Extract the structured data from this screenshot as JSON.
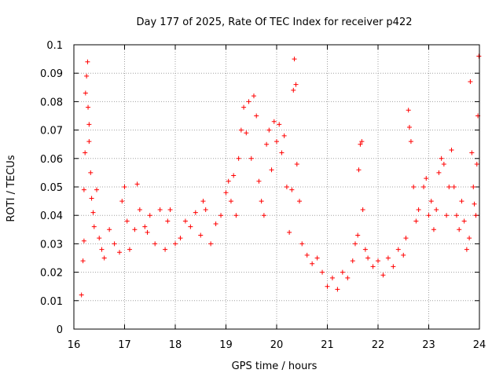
{
  "chart_data": {
    "type": "scatter",
    "title": "Day 177 of 2025, Rate Of TEC Index for receiver p422",
    "xlabel": "GPS time / hours",
    "ylabel": "ROTI / TECUs",
    "xlim": [
      16,
      24
    ],
    "ylim": [
      0,
      0.1
    ],
    "x_ticks": [
      16,
      17,
      18,
      19,
      20,
      21,
      22,
      23,
      24
    ],
    "x_tick_labels": [
      "16",
      "17",
      "18",
      "19",
      "20",
      "21",
      "22",
      "23",
      "24"
    ],
    "y_ticks": [
      0,
      0.01,
      0.02,
      0.03,
      0.04,
      0.05,
      0.06,
      0.07,
      0.08,
      0.09,
      0.1
    ],
    "y_tick_labels": [
      "0",
      "0.01",
      "0.02",
      "0.03",
      "0.04",
      "0.05",
      "0.06",
      "0.07",
      "0.08",
      "0.09",
      "0.1"
    ],
    "grid": true,
    "marker": "plus",
    "color": "#ff0000",
    "series": [
      {
        "points": [
          [
            16.15,
            0.012
          ],
          [
            16.18,
            0.024
          ],
          [
            16.2,
            0.031
          ],
          [
            16.2,
            0.049
          ],
          [
            16.22,
            0.062
          ],
          [
            16.23,
            0.083
          ],
          [
            16.25,
            0.089
          ],
          [
            16.27,
            0.094
          ],
          [
            16.28,
            0.078
          ],
          [
            16.3,
            0.072
          ],
          [
            16.3,
            0.066
          ],
          [
            16.33,
            0.055
          ],
          [
            16.35,
            0.046
          ],
          [
            16.38,
            0.041
          ],
          [
            16.4,
            0.036
          ],
          [
            16.45,
            0.049
          ],
          [
            16.5,
            0.032
          ],
          [
            16.55,
            0.028
          ],
          [
            16.6,
            0.025
          ],
          [
            16.7,
            0.035
          ],
          [
            16.8,
            0.03
          ],
          [
            16.9,
            0.027
          ],
          [
            16.95,
            0.045
          ],
          [
            17.0,
            0.05
          ],
          [
            17.05,
            0.038
          ],
          [
            17.1,
            0.028
          ],
          [
            17.2,
            0.035
          ],
          [
            17.25,
            0.051
          ],
          [
            17.3,
            0.042
          ],
          [
            17.4,
            0.036
          ],
          [
            17.45,
            0.034
          ],
          [
            17.5,
            0.04
          ],
          [
            17.6,
            0.03
          ],
          [
            17.7,
            0.042
          ],
          [
            17.8,
            0.028
          ],
          [
            17.85,
            0.038
          ],
          [
            17.9,
            0.042
          ],
          [
            18.0,
            0.03
          ],
          [
            18.1,
            0.032
          ],
          [
            18.2,
            0.038
          ],
          [
            18.3,
            0.036
          ],
          [
            18.4,
            0.041
          ],
          [
            18.5,
            0.033
          ],
          [
            18.55,
            0.045
          ],
          [
            18.6,
            0.042
          ],
          [
            18.7,
            0.03
          ],
          [
            18.8,
            0.037
          ],
          [
            18.9,
            0.04
          ],
          [
            19.0,
            0.048
          ],
          [
            19.05,
            0.052
          ],
          [
            19.1,
            0.045
          ],
          [
            19.15,
            0.054
          ],
          [
            19.2,
            0.04
          ],
          [
            19.25,
            0.06
          ],
          [
            19.3,
            0.07
          ],
          [
            19.35,
            0.078
          ],
          [
            19.4,
            0.069
          ],
          [
            19.45,
            0.08
          ],
          [
            19.5,
            0.06
          ],
          [
            19.55,
            0.082
          ],
          [
            19.6,
            0.075
          ],
          [
            19.65,
            0.052
          ],
          [
            19.7,
            0.045
          ],
          [
            19.75,
            0.04
          ],
          [
            19.8,
            0.065
          ],
          [
            19.85,
            0.07
          ],
          [
            19.9,
            0.056
          ],
          [
            19.95,
            0.073
          ],
          [
            20.0,
            0.066
          ],
          [
            20.05,
            0.072
          ],
          [
            20.1,
            0.062
          ],
          [
            20.15,
            0.068
          ],
          [
            20.2,
            0.05
          ],
          [
            20.25,
            0.034
          ],
          [
            20.3,
            0.049
          ],
          [
            20.33,
            0.084
          ],
          [
            20.35,
            0.095
          ],
          [
            20.38,
            0.086
          ],
          [
            20.4,
            0.058
          ],
          [
            20.45,
            0.045
          ],
          [
            20.5,
            0.03
          ],
          [
            20.6,
            0.026
          ],
          [
            20.7,
            0.023
          ],
          [
            20.8,
            0.025
          ],
          [
            20.9,
            0.02
          ],
          [
            21.0,
            0.015
          ],
          [
            21.1,
            0.018
          ],
          [
            21.2,
            0.014
          ],
          [
            21.3,
            0.02
          ],
          [
            21.4,
            0.018
          ],
          [
            21.5,
            0.024
          ],
          [
            21.55,
            0.03
          ],
          [
            21.6,
            0.033
          ],
          [
            21.62,
            0.056
          ],
          [
            21.65,
            0.065
          ],
          [
            21.68,
            0.066
          ],
          [
            21.7,
            0.042
          ],
          [
            21.75,
            0.028
          ],
          [
            21.8,
            0.025
          ],
          [
            21.9,
            0.022
          ],
          [
            22.0,
            0.024
          ],
          [
            22.1,
            0.019
          ],
          [
            22.2,
            0.025
          ],
          [
            22.3,
            0.022
          ],
          [
            22.4,
            0.028
          ],
          [
            22.5,
            0.026
          ],
          [
            22.55,
            0.032
          ],
          [
            22.6,
            0.077
          ],
          [
            22.62,
            0.071
          ],
          [
            22.65,
            0.066
          ],
          [
            22.7,
            0.05
          ],
          [
            22.75,
            0.038
          ],
          [
            22.8,
            0.042
          ],
          [
            22.9,
            0.05
          ],
          [
            22.95,
            0.053
          ],
          [
            23.0,
            0.04
          ],
          [
            23.05,
            0.045
          ],
          [
            23.1,
            0.035
          ],
          [
            23.15,
            0.042
          ],
          [
            23.2,
            0.055
          ],
          [
            23.25,
            0.06
          ],
          [
            23.3,
            0.058
          ],
          [
            23.35,
            0.04
          ],
          [
            23.4,
            0.05
          ],
          [
            23.45,
            0.063
          ],
          [
            23.5,
            0.05
          ],
          [
            23.55,
            0.04
          ],
          [
            23.6,
            0.035
          ],
          [
            23.65,
            0.045
          ],
          [
            23.7,
            0.038
          ],
          [
            23.75,
            0.028
          ],
          [
            23.8,
            0.032
          ],
          [
            23.82,
            0.087
          ],
          [
            23.85,
            0.062
          ],
          [
            23.88,
            0.05
          ],
          [
            23.9,
            0.044
          ],
          [
            23.93,
            0.04
          ],
          [
            23.95,
            0.058
          ],
          [
            23.97,
            0.075
          ],
          [
            23.99,
            0.096
          ]
        ]
      }
    ]
  }
}
